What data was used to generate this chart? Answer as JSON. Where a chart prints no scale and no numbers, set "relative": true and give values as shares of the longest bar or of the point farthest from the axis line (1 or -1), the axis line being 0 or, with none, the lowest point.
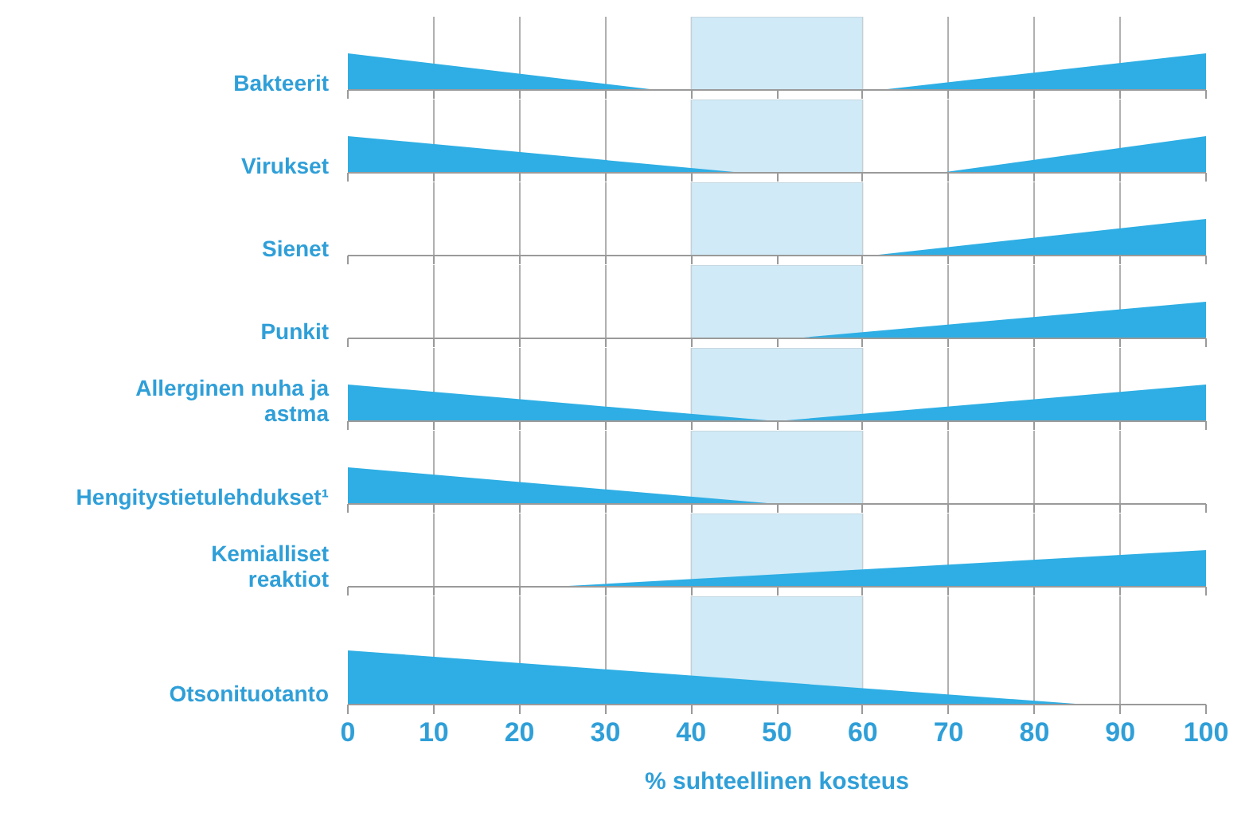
{
  "chart_data": [
    {
      "type": "area",
      "ylabel": "Bakteerit",
      "relative": true,
      "x": [
        0,
        36,
        62,
        100
      ],
      "values": [
        1,
        0,
        0,
        1
      ],
      "color": "#2eaee4",
      "xlim": [
        0,
        100
      ],
      "xticks": [
        0,
        10,
        20,
        30,
        40,
        50,
        60,
        70,
        80,
        90,
        100
      ],
      "tick_labels": false,
      "grid": "x",
      "bands": [
        {
          "axis": "x",
          "from": 40,
          "to": 60,
          "color": "#d0eaf7"
        }
      ]
    },
    {
      "type": "area",
      "ylabel": "Virukset",
      "relative": true,
      "x": [
        0,
        46,
        69,
        100
      ],
      "values": [
        1,
        0,
        0,
        1
      ],
      "color": "#2eaee4",
      "xlim": [
        0,
        100
      ],
      "xticks": [
        0,
        10,
        20,
        30,
        40,
        50,
        60,
        70,
        80,
        90,
        100
      ],
      "tick_labels": false,
      "grid": "x",
      "bands": [
        {
          "axis": "x",
          "from": 40,
          "to": 60,
          "color": "#d0eaf7"
        }
      ]
    },
    {
      "type": "area",
      "ylabel": "Sienet",
      "relative": true,
      "x": [
        0,
        61,
        100
      ],
      "values": [
        0,
        0,
        1
      ],
      "color": "#2eaee4",
      "xlim": [
        0,
        100
      ],
      "xticks": [
        0,
        10,
        20,
        30,
        40,
        50,
        60,
        70,
        80,
        90,
        100
      ],
      "tick_labels": false,
      "grid": "x",
      "bands": [
        {
          "axis": "x",
          "from": 40,
          "to": 60,
          "color": "#d0eaf7"
        }
      ]
    },
    {
      "type": "area",
      "ylabel": "Punkit",
      "relative": true,
      "x": [
        0,
        52,
        100
      ],
      "values": [
        0,
        0,
        1
      ],
      "color": "#2eaee4",
      "xlim": [
        0,
        100
      ],
      "xticks": [
        0,
        10,
        20,
        30,
        40,
        50,
        60,
        70,
        80,
        90,
        100
      ],
      "tick_labels": false,
      "grid": "x",
      "bands": [
        {
          "axis": "x",
          "from": 40,
          "to": 60,
          "color": "#d0eaf7"
        }
      ]
    },
    {
      "type": "area",
      "ylabel": "Allerginen nuha ja astma",
      "relative": true,
      "x": [
        0,
        50,
        100
      ],
      "values": [
        1,
        0,
        1
      ],
      "color": "#2eaee4",
      "xlim": [
        0,
        100
      ],
      "xticks": [
        0,
        10,
        20,
        30,
        40,
        50,
        60,
        70,
        80,
        90,
        100
      ],
      "tick_labels": false,
      "grid": "x",
      "bands": [
        {
          "axis": "x",
          "from": 40,
          "to": 60,
          "color": "#d0eaf7"
        }
      ]
    },
    {
      "type": "area",
      "ylabel": "Hengitystietulehdukset¹",
      "relative": true,
      "x": [
        0,
        50,
        100
      ],
      "values": [
        1,
        0,
        0
      ],
      "color": "#2eaee4",
      "xlim": [
        0,
        100
      ],
      "xticks": [
        0,
        10,
        20,
        30,
        40,
        50,
        60,
        70,
        80,
        90,
        100
      ],
      "tick_labels": false,
      "grid": "x",
      "bands": [
        {
          "axis": "x",
          "from": 40,
          "to": 60,
          "color": "#d0eaf7"
        }
      ]
    },
    {
      "type": "area",
      "ylabel": "Kemialliset reaktiot",
      "relative": true,
      "x": [
        0,
        24,
        100
      ],
      "values": [
        0,
        0,
        1
      ],
      "color": "#2eaee4",
      "xlim": [
        0,
        100
      ],
      "xticks": [
        0,
        10,
        20,
        30,
        40,
        50,
        60,
        70,
        80,
        90,
        100
      ],
      "tick_labels": false,
      "grid": "x",
      "bands": [
        {
          "axis": "x",
          "from": 40,
          "to": 60,
          "color": "#d0eaf7"
        }
      ]
    },
    {
      "type": "area",
      "ylabel": "Otsonituotanto",
      "xlabel": "% suhteellinen kosteus",
      "relative": true,
      "x": [
        0,
        86,
        100
      ],
      "values": [
        1,
        0,
        0
      ],
      "color": "#2eaee4",
      "xlim": [
        0,
        100
      ],
      "xticks": [
        0,
        10,
        20,
        30,
        40,
        50,
        60,
        70,
        80,
        90,
        100
      ],
      "tick_labels": "x",
      "grid": "x",
      "bands": [
        {
          "axis": "x",
          "from": 40,
          "to": 60,
          "color": "#d0eaf7"
        }
      ]
    }
  ]
}
